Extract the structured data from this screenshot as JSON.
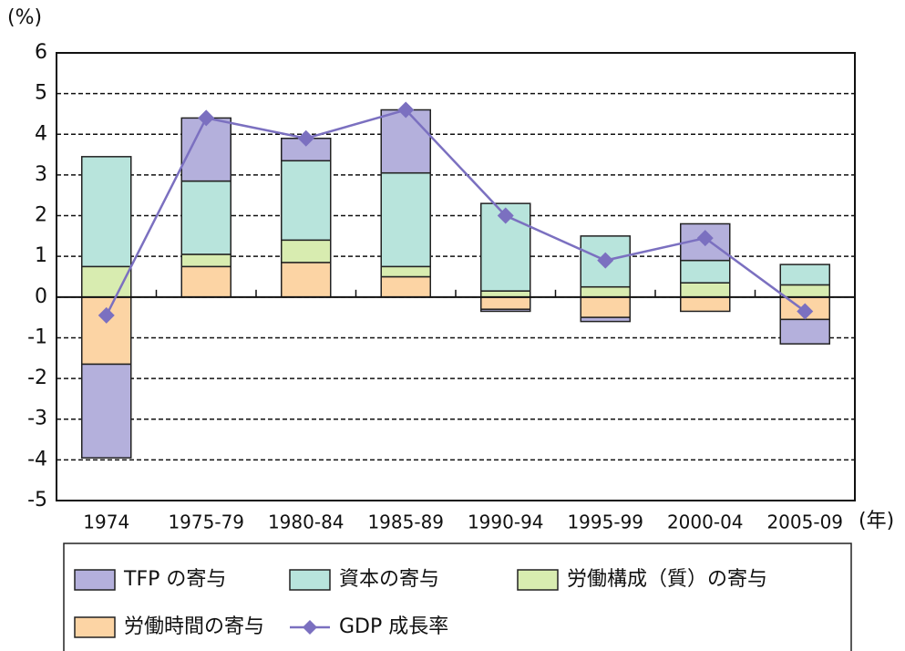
{
  "chart_data": {
    "type": "bar",
    "y_unit": "(%)",
    "x_unit": "(年)",
    "categories": [
      "1974",
      "1975-79",
      "1980-84",
      "1985-89",
      "1990-94",
      "1995-99",
      "2000-04",
      "2005-09"
    ],
    "series": [
      {
        "name": "TFP の寄与",
        "type": "bar",
        "color": "#b4b0dc",
        "values": [
          -2.3,
          1.55,
          0.55,
          1.55,
          -0.05,
          -0.1,
          0.9,
          -0.6
        ]
      },
      {
        "name": "資本の寄与",
        "type": "bar",
        "color": "#b8e4dc",
        "values": [
          2.7,
          1.8,
          1.95,
          2.3,
          2.15,
          1.25,
          0.55,
          0.5
        ]
      },
      {
        "name": "労働構成（質）の寄与",
        "type": "bar",
        "color": "#d8ecb0",
        "values": [
          0.75,
          0.3,
          0.55,
          0.25,
          0.15,
          0.25,
          0.35,
          0.3
        ]
      },
      {
        "name": "労働時間の寄与",
        "type": "bar",
        "color": "#fcd4a4",
        "values": [
          -1.65,
          0.75,
          0.85,
          0.5,
          -0.3,
          -0.5,
          -0.35,
          -0.55
        ]
      },
      {
        "name": "GDP 成長率",
        "type": "line",
        "color": "#7b70c0",
        "values": [
          -0.45,
          4.4,
          3.9,
          4.6,
          2.0,
          0.9,
          1.45,
          -0.35
        ]
      }
    ],
    "stack_order": [
      3,
      2,
      1,
      0
    ],
    "ylim": [
      -5,
      6
    ],
    "yticks": [
      -5,
      -4,
      -3,
      -2,
      -1,
      0,
      1,
      2,
      3,
      4,
      5,
      6
    ],
    "grid": true
  }
}
